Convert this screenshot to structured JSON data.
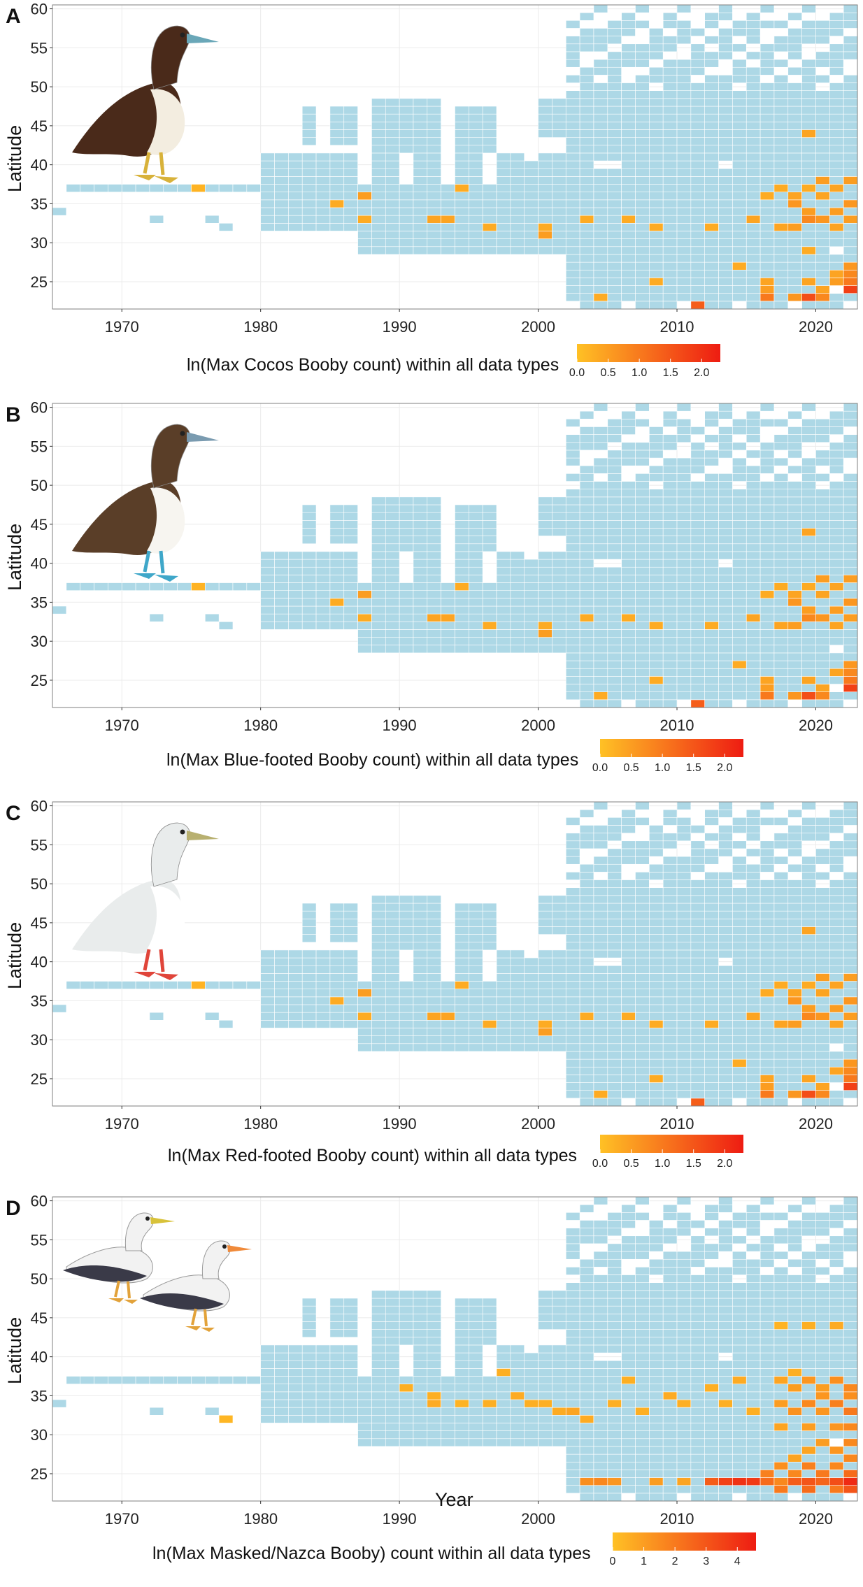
{
  "colors": {
    "presence_fill": "#add8e6",
    "color_low": "#ffc125",
    "color_high": "#ee1c12",
    "grid": "#ebebeb",
    "panel_border": "#7f7f7f"
  },
  "x_axis_title": "Year",
  "chart_data": [
    {
      "type": "heatmap",
      "panel_label": "A",
      "bird_icon": "brown-booby-illustration",
      "bird_colors": {
        "body": "#4a2a1a",
        "belly": "#f3ede0",
        "feet": "#d8b23a",
        "bill": "#6aa7b8"
      },
      "ylabel": "Latitude",
      "xlim": [
        1965,
        2023
      ],
      "ylim": [
        21.5,
        60.5
      ],
      "xticks": [
        1970,
        1980,
        1990,
        2000,
        2010,
        2020
      ],
      "yticks": [
        25,
        30,
        35,
        40,
        45,
        50,
        55,
        60
      ],
      "legend_title": "ln(Max Cocos Booby count) within all data types",
      "colorbar_range": [
        0,
        2.3
      ],
      "colorbar_ticks": [
        "0.0",
        "0.5",
        "1.0",
        "1.5",
        "2.0"
      ],
      "highlights": [
        [
          1975,
          37,
          0.2
        ],
        [
          1985,
          35,
          0.3
        ],
        [
          1987,
          36,
          0.5
        ],
        [
          1987,
          33,
          0.3
        ],
        [
          1992,
          33,
          0.4
        ],
        [
          1993,
          33,
          0.4
        ],
        [
          1994,
          37,
          0.3
        ],
        [
          1996,
          32,
          0.3
        ],
        [
          2000,
          31,
          0.5
        ],
        [
          2000,
          32,
          0.3
        ],
        [
          2003,
          33,
          0.3
        ],
        [
          2006,
          33,
          0.3
        ],
        [
          2008,
          32,
          0.3
        ],
        [
          2012,
          32,
          0.3
        ],
        [
          2015,
          33,
          0.4
        ],
        [
          2017,
          32,
          0.4
        ],
        [
          2018,
          32,
          0.5
        ],
        [
          2019,
          33,
          0.8
        ],
        [
          2020,
          33,
          0.6
        ],
        [
          2021,
          32,
          0.4
        ],
        [
          2022,
          33,
          0.5
        ],
        [
          2016,
          36,
          0.3
        ],
        [
          2017,
          37,
          0.3
        ],
        [
          2018,
          36,
          0.4
        ],
        [
          2019,
          37,
          0.3
        ],
        [
          2020,
          38,
          0.5
        ],
        [
          2021,
          37,
          0.4
        ],
        [
          2022,
          38,
          0.5
        ],
        [
          2018,
          35,
          0.6
        ],
        [
          2019,
          34,
          0.5
        ],
        [
          2020,
          36,
          0.4
        ],
        [
          2021,
          34,
          0.5
        ],
        [
          2022,
          35,
          0.6
        ],
        [
          2019,
          44,
          0.4
        ],
        [
          2019,
          29,
          0.3
        ],
        [
          2016,
          25,
          0.4
        ],
        [
          2016,
          24,
          0.5
        ],
        [
          2019,
          25,
          0.4
        ],
        [
          2020,
          24,
          0.4
        ],
        [
          2021,
          26,
          0.4
        ],
        [
          2022,
          27,
          0.6
        ],
        [
          2022,
          26,
          0.8
        ],
        [
          2022,
          24,
          1.8
        ],
        [
          2022,
          25,
          1.0
        ],
        [
          2021,
          25,
          0.5
        ],
        [
          2019,
          23,
          1.6
        ],
        [
          2018,
          23,
          0.6
        ],
        [
          2020,
          23,
          0.8
        ],
        [
          2016,
          23,
          1.0
        ],
        [
          2004,
          23,
          0.3
        ],
        [
          2011,
          22,
          1.4
        ],
        [
          2008,
          25,
          0.3
        ],
        [
          2014,
          27,
          0.3
        ]
      ]
    },
    {
      "type": "heatmap",
      "panel_label": "B",
      "bird_icon": "blue-footed-booby-illustration",
      "bird_colors": {
        "body": "#5a3e28",
        "belly": "#f7f5f0",
        "feet": "#3fa7c9",
        "bill": "#7a9bb0"
      },
      "ylabel": "Latitude",
      "xlim": [
        1965,
        2023
      ],
      "ylim": [
        21.5,
        60.5
      ],
      "xticks": [
        1970,
        1980,
        1990,
        2000,
        2010,
        2020
      ],
      "yticks": [
        25,
        30,
        35,
        40,
        45,
        50,
        55,
        60
      ],
      "legend_title": "ln(Max Blue-footed Booby count) within all data types",
      "colorbar_range": [
        0,
        2.3
      ],
      "colorbar_ticks": [
        "0.0",
        "0.5",
        "1.0",
        "1.5",
        "2.0"
      ],
      "highlights": [
        [
          1975,
          37,
          0.2
        ],
        [
          1985,
          35,
          0.3
        ],
        [
          1987,
          36,
          0.5
        ],
        [
          1987,
          33,
          0.3
        ],
        [
          1992,
          33,
          0.4
        ],
        [
          1993,
          33,
          0.4
        ],
        [
          1994,
          37,
          0.3
        ],
        [
          1996,
          32,
          0.3
        ],
        [
          2000,
          31,
          0.5
        ],
        [
          2000,
          32,
          0.3
        ],
        [
          2003,
          33,
          0.3
        ],
        [
          2006,
          33,
          0.3
        ],
        [
          2008,
          32,
          0.3
        ],
        [
          2012,
          32,
          0.3
        ],
        [
          2015,
          33,
          0.4
        ],
        [
          2017,
          32,
          0.4
        ],
        [
          2018,
          32,
          0.5
        ],
        [
          2019,
          33,
          0.8
        ],
        [
          2020,
          33,
          0.6
        ],
        [
          2021,
          32,
          0.4
        ],
        [
          2022,
          33,
          0.5
        ],
        [
          2016,
          36,
          0.3
        ],
        [
          2017,
          37,
          0.3
        ],
        [
          2018,
          36,
          0.4
        ],
        [
          2019,
          37,
          0.3
        ],
        [
          2020,
          38,
          0.5
        ],
        [
          2021,
          37,
          0.4
        ],
        [
          2022,
          38,
          0.5
        ],
        [
          2018,
          35,
          0.6
        ],
        [
          2019,
          34,
          0.5
        ],
        [
          2020,
          36,
          0.4
        ],
        [
          2021,
          34,
          0.5
        ],
        [
          2022,
          35,
          0.6
        ],
        [
          2019,
          44,
          0.4
        ],
        [
          2016,
          25,
          0.4
        ],
        [
          2016,
          24,
          0.5
        ],
        [
          2019,
          25,
          0.4
        ],
        [
          2020,
          24,
          0.4
        ],
        [
          2021,
          26,
          0.4
        ],
        [
          2022,
          27,
          0.6
        ],
        [
          2022,
          26,
          0.8
        ],
        [
          2022,
          24,
          1.8
        ],
        [
          2022,
          25,
          1.0
        ],
        [
          2019,
          23,
          1.6
        ],
        [
          2018,
          23,
          0.6
        ],
        [
          2020,
          23,
          0.8
        ],
        [
          2016,
          23,
          1.0
        ],
        [
          2004,
          23,
          0.3
        ],
        [
          2011,
          22,
          1.4
        ],
        [
          2008,
          25,
          0.3
        ],
        [
          2014,
          27,
          0.3
        ]
      ]
    },
    {
      "type": "heatmap",
      "panel_label": "C",
      "bird_icon": "red-footed-booby-illustration",
      "bird_colors": {
        "body": "#e9ecec",
        "belly": "#ffffff",
        "feet": "#e0453a",
        "bill": "#b8b070"
      },
      "ylabel": "Latitude",
      "xlim": [
        1965,
        2023
      ],
      "ylim": [
        21.5,
        60.5
      ],
      "xticks": [
        1970,
        1980,
        1990,
        2000,
        2010,
        2020
      ],
      "yticks": [
        25,
        30,
        35,
        40,
        45,
        50,
        55,
        60
      ],
      "legend_title": "ln(Max Red-footed Booby count) within all data types",
      "colorbar_range": [
        0,
        2.3
      ],
      "colorbar_ticks": [
        "0.0",
        "0.5",
        "1.0",
        "1.5",
        "2.0"
      ],
      "highlights": [
        [
          1975,
          37,
          0.2
        ],
        [
          1985,
          35,
          0.3
        ],
        [
          1987,
          36,
          0.5
        ],
        [
          1987,
          33,
          0.3
        ],
        [
          1992,
          33,
          0.4
        ],
        [
          1993,
          33,
          0.4
        ],
        [
          1994,
          37,
          0.3
        ],
        [
          1996,
          32,
          0.3
        ],
        [
          2000,
          31,
          0.5
        ],
        [
          2000,
          32,
          0.3
        ],
        [
          2003,
          33,
          0.3
        ],
        [
          2006,
          33,
          0.3
        ],
        [
          2008,
          32,
          0.3
        ],
        [
          2012,
          32,
          0.3
        ],
        [
          2015,
          33,
          0.4
        ],
        [
          2017,
          32,
          0.4
        ],
        [
          2018,
          32,
          0.5
        ],
        [
          2019,
          33,
          0.8
        ],
        [
          2020,
          33,
          0.6
        ],
        [
          2021,
          32,
          0.4
        ],
        [
          2022,
          33,
          0.5
        ],
        [
          2016,
          36,
          0.3
        ],
        [
          2017,
          37,
          0.3
        ],
        [
          2018,
          36,
          0.4
        ],
        [
          2019,
          37,
          0.3
        ],
        [
          2020,
          38,
          0.5
        ],
        [
          2021,
          37,
          0.4
        ],
        [
          2022,
          38,
          0.5
        ],
        [
          2018,
          35,
          0.6
        ],
        [
          2019,
          34,
          0.5
        ],
        [
          2020,
          36,
          0.4
        ],
        [
          2021,
          34,
          0.5
        ],
        [
          2022,
          35,
          0.6
        ],
        [
          2019,
          44,
          0.4
        ],
        [
          2016,
          25,
          0.4
        ],
        [
          2016,
          24,
          0.5
        ],
        [
          2019,
          25,
          0.4
        ],
        [
          2020,
          24,
          0.4
        ],
        [
          2021,
          26,
          0.4
        ],
        [
          2022,
          27,
          0.6
        ],
        [
          2022,
          26,
          0.8
        ],
        [
          2022,
          24,
          1.8
        ],
        [
          2022,
          25,
          1.0
        ],
        [
          2019,
          23,
          1.6
        ],
        [
          2018,
          23,
          0.6
        ],
        [
          2020,
          23,
          0.8
        ],
        [
          2016,
          23,
          1.0
        ],
        [
          2004,
          23,
          0.3
        ],
        [
          2011,
          22,
          1.4
        ],
        [
          2008,
          25,
          0.3
        ],
        [
          2014,
          27,
          0.3
        ]
      ]
    },
    {
      "type": "heatmap",
      "panel_label": "D",
      "bird_icon": "masked-nazca-booby-illustration",
      "bird_colors": {
        "body": "#f2f2f2",
        "belly": "#ffffff",
        "feet": "#e2a23a",
        "bill": "#d8c23a",
        "wing": "#3a3a48"
      },
      "ylabel": "Latitude",
      "xlabel": "Year",
      "xlim": [
        1965,
        2023
      ],
      "ylim": [
        21.5,
        60.5
      ],
      "xticks": [
        1970,
        1980,
        1990,
        2000,
        2010,
        2020
      ],
      "yticks": [
        25,
        30,
        35,
        40,
        45,
        50,
        55,
        60
      ],
      "legend_title": "ln(Max Masked/Nazca Booby) count within all data types",
      "colorbar_range": [
        0,
        4.6
      ],
      "colorbar_ticks": [
        "0",
        "1",
        "2",
        "3",
        "4"
      ],
      "highlights": [
        [
          1977,
          32,
          0.3
        ],
        [
          1990,
          36,
          0.5
        ],
        [
          1992,
          35,
          0.5
        ],
        [
          1992,
          34,
          0.6
        ],
        [
          1994,
          34,
          0.4
        ],
        [
          1996,
          34,
          0.5
        ],
        [
          1998,
          35,
          0.6
        ],
        [
          1999,
          34,
          0.5
        ],
        [
          2000,
          34,
          0.5
        ],
        [
          2001,
          33,
          0.6
        ],
        [
          2002,
          33,
          0.8
        ],
        [
          2003,
          32,
          0.6
        ],
        [
          2005,
          34,
          0.5
        ],
        [
          2007,
          33,
          0.5
        ],
        [
          2009,
          35,
          0.6
        ],
        [
          2010,
          34,
          0.5
        ],
        [
          2012,
          36,
          0.5
        ],
        [
          2013,
          34,
          0.5
        ],
        [
          2014,
          37,
          0.6
        ],
        [
          2015,
          33,
          0.5
        ],
        [
          1997,
          38,
          0.5
        ],
        [
          2006,
          37,
          0.5
        ],
        [
          2017,
          44,
          0.4
        ],
        [
          2019,
          44,
          0.5
        ],
        [
          2021,
          44,
          0.6
        ],
        [
          2018,
          38,
          0.5
        ],
        [
          2017,
          37,
          0.8
        ],
        [
          2018,
          36,
          1.0
        ],
        [
          2019,
          37,
          1.2
        ],
        [
          2020,
          36,
          1.0
        ],
        [
          2021,
          37,
          1.4
        ],
        [
          2022,
          36,
          1.6
        ],
        [
          2017,
          34,
          1.0
        ],
        [
          2018,
          33,
          1.3
        ],
        [
          2019,
          34,
          1.6
        ],
        [
          2020,
          33,
          1.2
        ],
        [
          2021,
          34,
          1.8
        ],
        [
          2022,
          33,
          2.0
        ],
        [
          2020,
          35,
          1.2
        ],
        [
          2022,
          35,
          1.4
        ],
        [
          2021,
          31,
          1.2
        ],
        [
          2022,
          31,
          1.6
        ],
        [
          2019,
          31,
          1.0
        ],
        [
          2017,
          31,
          0.8
        ],
        [
          2020,
          29,
          1.0
        ],
        [
          2022,
          29,
          1.6
        ],
        [
          2021,
          28,
          1.2
        ],
        [
          2019,
          28,
          0.8
        ],
        [
          2018,
          27,
          0.8
        ],
        [
          2022,
          27,
          1.6
        ],
        [
          2003,
          24,
          1.4
        ],
        [
          2004,
          24,
          1.6
        ],
        [
          2005,
          24,
          1.2
        ],
        [
          2008,
          24,
          1.0
        ],
        [
          2010,
          24,
          0.8
        ],
        [
          2012,
          24,
          2.8
        ],
        [
          2013,
          24,
          3.6
        ],
        [
          2014,
          24,
          4.0
        ],
        [
          2015,
          24,
          3.8
        ],
        [
          2016,
          24,
          2.4
        ],
        [
          2017,
          24,
          1.6
        ],
        [
          2018,
          24,
          2.8
        ],
        [
          2019,
          24,
          3.0
        ],
        [
          2020,
          24,
          2.6
        ],
        [
          2021,
          24,
          3.2
        ],
        [
          2022,
          24,
          4.2
        ],
        [
          2017,
          23,
          2.0
        ],
        [
          2019,
          23,
          2.4
        ],
        [
          2021,
          23,
          2.0
        ],
        [
          2022,
          23,
          3.0
        ],
        [
          2016,
          25,
          1.8
        ],
        [
          2018,
          25,
          1.6
        ],
        [
          2020,
          25,
          2.0
        ],
        [
          2022,
          25,
          2.4
        ],
        [
          2017,
          26,
          1.4
        ],
        [
          2019,
          26,
          1.8
        ],
        [
          2021,
          26,
          1.6
        ]
      ]
    }
  ]
}
